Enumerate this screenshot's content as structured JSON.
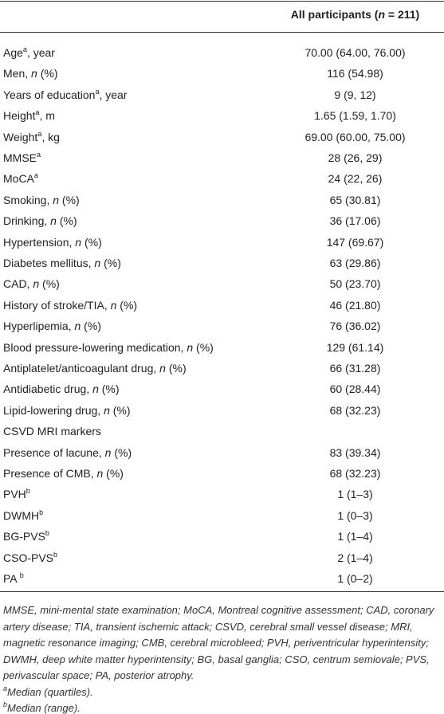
{
  "table": {
    "header": [
      {
        "text": "All participants ("
      },
      {
        "i": "n"
      },
      {
        "text": " = 211)"
      }
    ],
    "rows": [
      {
        "label": [
          {
            "text": "Age"
          },
          {
            "sup": "a"
          },
          {
            "text": ", year"
          }
        ],
        "value": "70.00 (64.00, 76.00)"
      },
      {
        "label": [
          {
            "text": "Men, "
          },
          {
            "i": "n"
          },
          {
            "text": " (%)"
          }
        ],
        "value": "116 (54.98)"
      },
      {
        "label": [
          {
            "text": "Years of education"
          },
          {
            "sup": "a"
          },
          {
            "text": ", year"
          }
        ],
        "value": "9 (9, 12)"
      },
      {
        "label": [
          {
            "text": "Height"
          },
          {
            "sup": "a"
          },
          {
            "text": ", m"
          }
        ],
        "value": "1.65 (1.59, 1.70)"
      },
      {
        "label": [
          {
            "text": "Weight"
          },
          {
            "sup": "a"
          },
          {
            "text": ", kg"
          }
        ],
        "value": "69.00 (60.00, 75.00)"
      },
      {
        "label": [
          {
            "text": "MMSE"
          },
          {
            "sup": "a"
          }
        ],
        "value": "28 (26, 29)"
      },
      {
        "label": [
          {
            "text": "MoCA"
          },
          {
            "sup": "a"
          }
        ],
        "value": "24 (22, 26)"
      },
      {
        "label": [
          {
            "text": "Smoking, "
          },
          {
            "i": "n"
          },
          {
            "text": " (%)"
          }
        ],
        "value": "65 (30.81)"
      },
      {
        "label": [
          {
            "text": "Drinking, "
          },
          {
            "i": "n"
          },
          {
            "text": " (%)"
          }
        ],
        "value": "36 (17.06)"
      },
      {
        "label": [
          {
            "text": "Hypertension, "
          },
          {
            "i": "n"
          },
          {
            "text": " (%)"
          }
        ],
        "value": "147 (69.67)"
      },
      {
        "label": [
          {
            "text": "Diabetes mellitus, "
          },
          {
            "i": "n"
          },
          {
            "text": " (%)"
          }
        ],
        "value": "63 (29.86)"
      },
      {
        "label": [
          {
            "text": "CAD, "
          },
          {
            "i": "n"
          },
          {
            "text": " (%)"
          }
        ],
        "value": "50 (23.70)"
      },
      {
        "label": [
          {
            "text": "History of stroke/TIA, "
          },
          {
            "i": "n"
          },
          {
            "text": " (%)"
          }
        ],
        "value": "46 (21.80)"
      },
      {
        "label": [
          {
            "text": "Hyperlipemia, "
          },
          {
            "i": "n"
          },
          {
            "text": " (%)"
          }
        ],
        "value": "76 (36.02)"
      },
      {
        "label": [
          {
            "text": "Blood pressure-lowering medication, "
          },
          {
            "i": "n"
          },
          {
            "text": " (%)"
          }
        ],
        "value": "129 (61.14)"
      },
      {
        "label": [
          {
            "text": "Antiplatelet/anticoagulant drug, "
          },
          {
            "i": "n"
          },
          {
            "text": " (%)"
          }
        ],
        "value": "66 (31.28)"
      },
      {
        "label": [
          {
            "text": "Antidiabetic drug, "
          },
          {
            "i": "n"
          },
          {
            "text": " (%)"
          }
        ],
        "value": "60 (28.44)"
      },
      {
        "label": [
          {
            "text": "Lipid-lowering drug, "
          },
          {
            "i": "n"
          },
          {
            "text": " (%)"
          }
        ],
        "value": "68 (32.23)"
      },
      {
        "label": [
          {
            "text": "CSVD MRI markers"
          }
        ]
      },
      {
        "label": [
          {
            "text": "Presence of lacune, "
          },
          {
            "i": "n"
          },
          {
            "text": " (%)"
          }
        ],
        "value": "83 (39.34)"
      },
      {
        "label": [
          {
            "text": "Presence of CMB, "
          },
          {
            "i": "n"
          },
          {
            "text": " (%)"
          }
        ],
        "value": "68 (32.23)"
      },
      {
        "label": [
          {
            "text": "PVH"
          },
          {
            "sup": "b"
          }
        ],
        "value": "1 (1–3)"
      },
      {
        "label": [
          {
            "text": "DWMH"
          },
          {
            "sup": "b"
          }
        ],
        "value": "1 (0–3)"
      },
      {
        "label": [
          {
            "text": "BG-PVS"
          },
          {
            "sup": "b"
          }
        ],
        "value": "1 (1–4)"
      },
      {
        "label": [
          {
            "text": "CSO-PVS"
          },
          {
            "sup": "b"
          }
        ],
        "value": "2 (1–4)"
      },
      {
        "label": [
          {
            "text": "PA "
          },
          {
            "sup": "b"
          }
        ],
        "value": "1 (0–2)"
      }
    ],
    "footnotes": [
      [
        {
          "text": "MMSE, mini-mental state examination; MoCA, Montreal cognitive assessment; CAD, coronary artery disease; TIA, transient ischemic attack; CSVD, cerebral small vessel disease; MRI, magnetic resonance imaging; CMB, cerebral microbleed; PVH, periventricular hyperintensity; DWMH, deep white matter hyperintensity; BG, basal ganglia; CSO, centrum semiovale; PVS, perivascular space; PA, posterior atrophy."
        }
      ],
      [
        {
          "sup": "a"
        },
        {
          "text": "Median (quartiles)."
        }
      ],
      [
        {
          "sup": "b"
        },
        {
          "text": "Median (range)."
        }
      ]
    ]
  }
}
